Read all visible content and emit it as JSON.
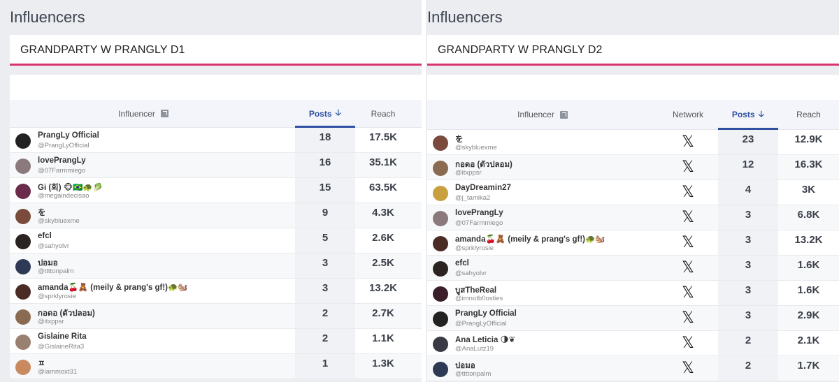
{
  "left": {
    "title": "Influencers",
    "campaign": "GRANDPARTY W PRANGLY D1",
    "headers": {
      "influencer": "Influencer",
      "posts": "Posts",
      "reach": "Reach"
    },
    "rows": [
      {
        "name": "PrangLy Official",
        "handle": "@PrangLyOfficial",
        "posts": "18",
        "reach": "17.5K",
        "avatar_color": "#222222"
      },
      {
        "name": "lovePrangLy",
        "handle": "@07Farmmiego",
        "posts": "16",
        "reach": "35.1K",
        "avatar_color": "#8a7a7e"
      },
      {
        "name": "Gi (회) 🐵🇧🇷🐢🥬",
        "handle": "@megaindecisao",
        "posts": "15",
        "reach": "63.5K",
        "avatar_color": "#6b2b4a"
      },
      {
        "name": "を",
        "handle": "@skybluexme",
        "posts": "9",
        "reach": "4.3K",
        "avatar_color": "#7a4b3c"
      },
      {
        "name": "efcl",
        "handle": "@sahyolvr",
        "posts": "5",
        "reach": "2.6K",
        "avatar_color": "#2b2222"
      },
      {
        "name": "ปอมอ",
        "handle": "@ttttonpalm",
        "posts": "3",
        "reach": "2.5K",
        "avatar_color": "#2e3a55"
      },
      {
        "name": "amanda🍒🧸 (meily & prang's gf!)🐢🐿️",
        "handle": "@sprklyrosie",
        "posts": "3",
        "reach": "13.2K",
        "avatar_color": "#4a2c24"
      },
      {
        "name": "กอดอ (ตัวปลอม)",
        "handle": "@itxppsr",
        "posts": "2",
        "reach": "2.7K",
        "avatar_color": "#8a6a50"
      },
      {
        "name": "Gislaine Rita ",
        "handle": "@GislaineRita3",
        "posts": "2",
        "reach": "1.1K",
        "avatar_color": "#9a8070"
      },
      {
        "name": "ㅍ",
        "handle": "@iammoxt31",
        "posts": "1",
        "reach": "1.3K",
        "avatar_color": "#c98a60"
      }
    ]
  },
  "right": {
    "title": "Influencers",
    "campaign": "GRANDPARTY W PRANGLY D2",
    "headers": {
      "influencer": "Influencer",
      "network": "Network",
      "posts": "Posts",
      "reach": "Reach"
    },
    "network_icon": "𝕏",
    "rows": [
      {
        "name": "を",
        "handle": "@skybluexme",
        "posts": "23",
        "reach": "12.9K",
        "avatar_color": "#7a4b3c"
      },
      {
        "name": "กอดอ (ตัวปลอม)",
        "handle": "@itxppsr",
        "posts": "12",
        "reach": "16.3K",
        "avatar_color": "#8a6a50"
      },
      {
        "name": "DayDreamin27",
        "handle": "@j_tamika2",
        "posts": "4",
        "reach": "3K",
        "avatar_color": "#c8a040"
      },
      {
        "name": "lovePrangLy",
        "handle": "@07Farmmiego",
        "posts": "3",
        "reach": "6.8K",
        "avatar_color": "#8a7a7e"
      },
      {
        "name": "amanda🍒🧸 (meily & prang's gf!)🐢🐿️",
        "handle": "@sprklyrosie",
        "posts": "3",
        "reach": "13.2K",
        "avatar_color": "#4a2c24"
      },
      {
        "name": "efcl",
        "handle": "@sahyolvr",
        "posts": "3",
        "reach": "1.6K",
        "avatar_color": "#2b2222"
      },
      {
        "name": "บูสTheReal",
        "handle": "@imnotb0osties",
        "posts": "3",
        "reach": "1.6K",
        "avatar_color": "#3a1f2a"
      },
      {
        "name": "PrangLy Official",
        "handle": "@PrangLyOfficial",
        "posts": "3",
        "reach": "2.9K",
        "avatar_color": "#222222"
      },
      {
        "name": "Ana Leticia 🌗❦",
        "handle": "@AnaLutz19",
        "posts": "2",
        "reach": "2.1K",
        "avatar_color": "#3a3a44"
      },
      {
        "name": "ปอมอ",
        "handle": "@ttttonpalm",
        "posts": "2",
        "reach": "1.7K",
        "avatar_color": "#2e3a55"
      }
    ]
  },
  "colors": {
    "accent_bar": "#d8336f",
    "sort_blue": "#2f4fa3"
  }
}
